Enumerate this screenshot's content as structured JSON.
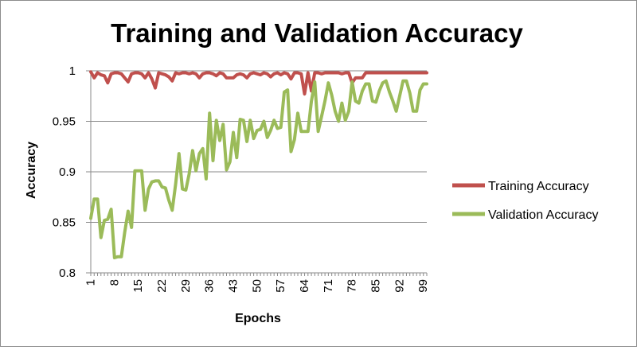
{
  "chart_data": {
    "type": "line",
    "title": "Training and Validation Accuracy",
    "xlabel": "Epochs",
    "ylabel": "Accuracy",
    "xlim": [
      1,
      100
    ],
    "ylim": [
      0.8,
      1
    ],
    "yticks": [
      0.8,
      0.85,
      0.9,
      0.95,
      1
    ],
    "ytick_labels": [
      "0.8",
      "0.85",
      "0.9",
      "0.95",
      "1"
    ],
    "xticks": [
      1,
      8,
      15,
      22,
      29,
      36,
      43,
      50,
      57,
      64,
      71,
      78,
      85,
      92,
      99
    ],
    "xtick_labels": [
      "1",
      "8",
      "15",
      "22",
      "29",
      "36",
      "43",
      "50",
      "57",
      "64",
      "71",
      "78",
      "85",
      "92",
      "99"
    ],
    "grid": "horizontal",
    "legend_position": "right",
    "series": [
      {
        "name": "Training Accuracy",
        "color": "#c0504d",
        "values": [
          0.999,
          0.993,
          0.998,
          0.996,
          0.995,
          0.988,
          0.997,
          0.998,
          0.998,
          0.997,
          0.993,
          0.989,
          0.997,
          0.998,
          0.998,
          0.997,
          0.993,
          0.998,
          0.992,
          0.983,
          0.998,
          0.997,
          0.996,
          0.994,
          0.99,
          0.998,
          0.997,
          0.998,
          0.998,
          0.997,
          0.998,
          0.997,
          0.993,
          0.997,
          0.998,
          0.998,
          0.997,
          0.995,
          0.998,
          0.997,
          0.993,
          0.993,
          0.993,
          0.996,
          0.997,
          0.996,
          0.993,
          0.997,
          0.998,
          0.997,
          0.996,
          0.998,
          0.997,
          0.994,
          0.997,
          0.998,
          0.996,
          0.998,
          0.997,
          0.992,
          0.998,
          0.998,
          0.997,
          0.977,
          0.998,
          0.98,
          0.998,
          0.998,
          0.997,
          0.998,
          0.998,
          0.998,
          0.998,
          0.998,
          0.997,
          0.998,
          0.998,
          0.988,
          0.993,
          0.993,
          0.993,
          0.998,
          0.998,
          0.998,
          0.998,
          0.998,
          0.998,
          0.998,
          0.998,
          0.998,
          0.998,
          0.998,
          0.998,
          0.998,
          0.998,
          0.998,
          0.998,
          0.998,
          0.998,
          0.998
        ]
      },
      {
        "name": "Validation Accuracy",
        "color": "#9bbb59",
        "values": [
          0.854,
          0.873,
          0.873,
          0.835,
          0.852,
          0.853,
          0.863,
          0.815,
          0.816,
          0.816,
          0.84,
          0.861,
          0.845,
          0.901,
          0.901,
          0.901,
          0.862,
          0.883,
          0.89,
          0.891,
          0.891,
          0.885,
          0.884,
          0.872,
          0.862,
          0.888,
          0.918,
          0.883,
          0.882,
          0.898,
          0.921,
          0.901,
          0.918,
          0.923,
          0.893,
          0.958,
          0.911,
          0.951,
          0.931,
          0.947,
          0.902,
          0.91,
          0.939,
          0.914,
          0.952,
          0.951,
          0.93,
          0.951,
          0.933,
          0.941,
          0.942,
          0.95,
          0.934,
          0.941,
          0.951,
          0.943,
          0.944,
          0.979,
          0.981,
          0.92,
          0.932,
          0.958,
          0.94,
          0.94,
          0.94,
          0.97,
          0.989,
          0.94,
          0.955,
          0.97,
          0.988,
          0.976,
          0.96,
          0.95,
          0.968,
          0.951,
          0.96,
          0.989,
          0.97,
          0.968,
          0.98,
          0.987,
          0.987,
          0.97,
          0.969,
          0.98,
          0.988,
          0.99,
          0.979,
          0.97,
          0.96,
          0.975,
          0.99,
          0.99,
          0.978,
          0.96,
          0.96,
          0.981,
          0.987,
          0.987
        ]
      }
    ]
  }
}
